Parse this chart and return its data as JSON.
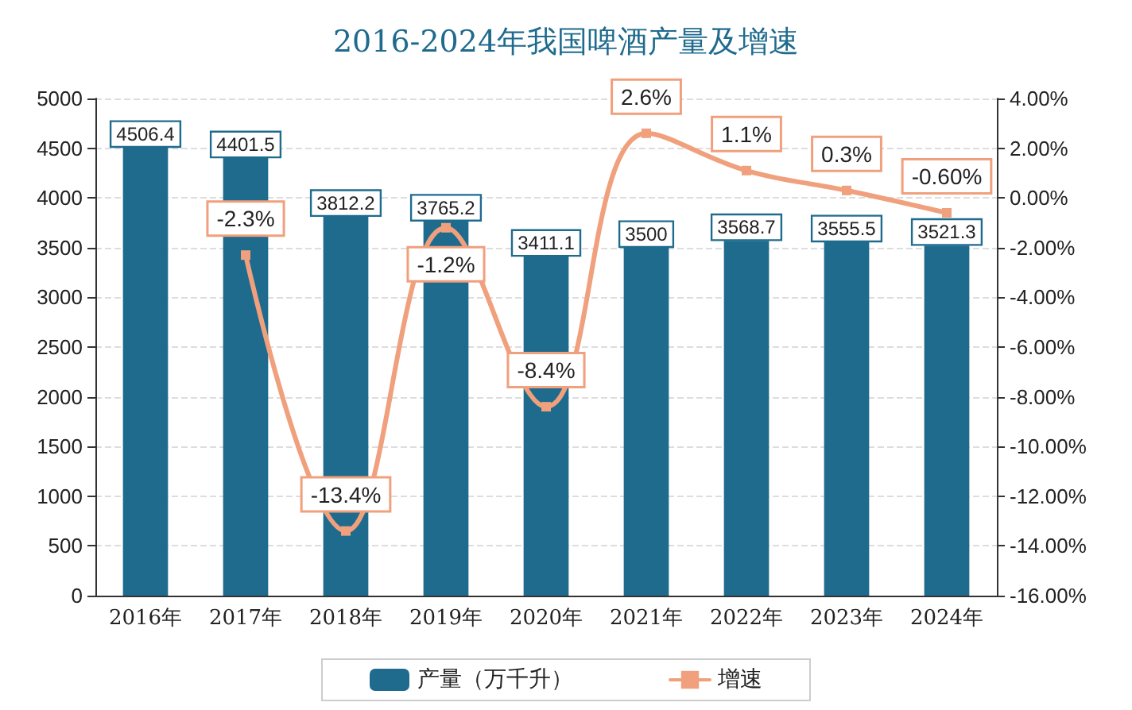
{
  "chart_data": {
    "type": "bar",
    "title": "2016-2024年我国啤酒产量及增速",
    "categories": [
      "2016年",
      "2017年",
      "2018年",
      "2019年",
      "2020年",
      "2021年",
      "2022年",
      "2023年",
      "2024年"
    ],
    "series": [
      {
        "name": "产量（万千升）",
        "color": "#1f6b8e",
        "values": [
          4506.4,
          4401.5,
          3812.2,
          3765.2,
          3411.1,
          3500,
          3568.7,
          3555.5,
          3521.3
        ],
        "value_labels": [
          "4506.4",
          "4401.5",
          "3812.2",
          "3765.2",
          "3411.1",
          "3500",
          "3568.7",
          "3555.5",
          "3521.3"
        ]
      },
      {
        "name": "增速",
        "type": "line",
        "axis": "y2",
        "color": "#f0a07c",
        "marker": "square",
        "values": [
          null,
          -2.3,
          -13.4,
          -1.2,
          -8.4,
          2.6,
          1.1,
          0.3,
          -0.6
        ],
        "value_labels": [
          null,
          "-2.3%",
          "-13.4%",
          "-1.2%",
          "-8.4%",
          "2.6%",
          "1.1%",
          "0.3%",
          "-0.60%"
        ]
      }
    ],
    "ylim": [
      0,
      5000
    ],
    "yticks": [
      0,
      500,
      1000,
      1500,
      2000,
      2500,
      3000,
      3500,
      4000,
      4500,
      5000
    ],
    "y2lim": [
      -16,
      4
    ],
    "y2ticks": [
      {
        "value": -16,
        "label": "-16.00%"
      },
      {
        "value": -14,
        "label": "-14.00%"
      },
      {
        "value": -12,
        "label": "-12.00%"
      },
      {
        "value": -10,
        "label": "-10.00%"
      },
      {
        "value": -8,
        "label": "-8.00%"
      },
      {
        "value": -6,
        "label": "-6.00%"
      },
      {
        "value": -4,
        "label": "-4.00%"
      },
      {
        "value": -2,
        "label": "-2.00%"
      },
      {
        "value": 0,
        "label": "0.00%"
      },
      {
        "value": 2,
        "label": "2.00%"
      },
      {
        "value": 4,
        "label": "4.00%"
      }
    ],
    "grid": "y",
    "legend": "bottom"
  }
}
